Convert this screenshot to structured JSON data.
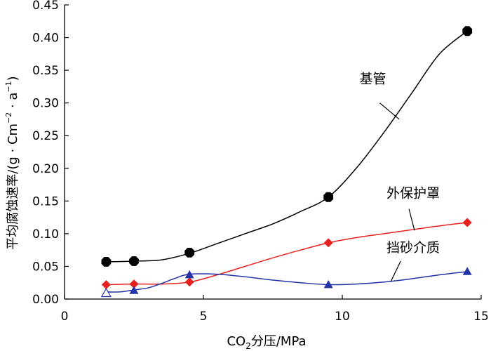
{
  "chart_data": {
    "type": "line",
    "xlabel": {
      "base": "CO",
      "sub": "2",
      "rest": "分压/MPa"
    },
    "ylabel": {
      "main": "平均腐蚀速率/(g · Cm",
      "sup1": "−2",
      "mid": " · a",
      "sup2": "−1",
      "end": ")"
    },
    "xlim": [
      0,
      15
    ],
    "ylim": [
      0,
      0.45
    ],
    "xticks": [
      0,
      5,
      10,
      15
    ],
    "xtick_labels": [
      "0",
      "5",
      "10",
      "15"
    ],
    "yticks": [
      0,
      0.05,
      0.1,
      0.15,
      0.2,
      0.25,
      0.3,
      0.35,
      0.4,
      0.45
    ],
    "ytick_labels": [
      "0.00",
      "0.05",
      "0.10",
      "0.15",
      "0.20",
      "0.25",
      "0.30",
      "0.35",
      "0.40",
      "0.45"
    ],
    "series": [
      {
        "name": "基管",
        "color": "#000000",
        "marker": "octagon",
        "points": [
          [
            1.5,
            0.057
          ],
          [
            2.5,
            0.058
          ],
          [
            4.5,
            0.071
          ],
          [
            9.5,
            0.156
          ],
          [
            14.5,
            0.41
          ]
        ],
        "curve": [
          [
            1.5,
            0.057
          ],
          [
            2.5,
            0.058
          ],
          [
            3.5,
            0.06
          ],
          [
            4.5,
            0.07
          ],
          [
            5.5,
            0.085
          ],
          [
            6.5,
            0.1
          ],
          [
            7.5,
            0.115
          ],
          [
            8.5,
            0.134
          ],
          [
            9.5,
            0.156
          ],
          [
            10.5,
            0.2
          ],
          [
            11.5,
            0.255
          ],
          [
            12.5,
            0.315
          ],
          [
            13.5,
            0.375
          ],
          [
            14.5,
            0.41
          ]
        ]
      },
      {
        "name": "外保护罩",
        "color": "#e8201e",
        "marker": "diamond",
        "points": [
          [
            1.5,
            0.022
          ],
          [
            2.5,
            0.023
          ],
          [
            4.5,
            0.026
          ],
          [
            9.5,
            0.086
          ],
          [
            14.5,
            0.117
          ]
        ],
        "curve": [
          [
            1.5,
            0.022
          ],
          [
            2.5,
            0.023
          ],
          [
            3.5,
            0.023
          ],
          [
            4.5,
            0.026
          ],
          [
            5.5,
            0.037
          ],
          [
            6.5,
            0.05
          ],
          [
            7.5,
            0.063
          ],
          [
            8.5,
            0.075
          ],
          [
            9.5,
            0.086
          ],
          [
            10.5,
            0.094
          ],
          [
            11.5,
            0.1
          ],
          [
            12.5,
            0.106
          ],
          [
            13.5,
            0.112
          ],
          [
            14.5,
            0.117
          ]
        ]
      },
      {
        "name": "挡砂介质",
        "color": "#2233a8",
        "marker": "triangle",
        "points": [
          [
            1.5,
            0.009
          ],
          [
            2.5,
            0.013
          ],
          [
            4.5,
            0.037
          ],
          [
            9.5,
            0.022
          ],
          [
            14.5,
            0.042
          ]
        ],
        "curve": [
          [
            1.5,
            0.011
          ],
          [
            2.0,
            0.011
          ],
          [
            2.5,
            0.014
          ],
          [
            3.0,
            0.017
          ],
          [
            3.5,
            0.024
          ],
          [
            4.0,
            0.032
          ],
          [
            4.5,
            0.038
          ],
          [
            5.5,
            0.038
          ],
          [
            6.5,
            0.034
          ],
          [
            7.5,
            0.029
          ],
          [
            8.5,
            0.025
          ],
          [
            9.5,
            0.022
          ],
          [
            10.5,
            0.023
          ],
          [
            11.5,
            0.026
          ],
          [
            12.5,
            0.031
          ],
          [
            13.5,
            0.037
          ],
          [
            14.5,
            0.042
          ]
        ]
      }
    ],
    "annotations": [
      {
        "text": "基管",
        "series": 0,
        "text_at": [
          11.1,
          0.33
        ],
        "arrow_from": [
          11.35,
          0.3
        ],
        "arrow_to": [
          12.05,
          0.275
        ]
      },
      {
        "text": "外保护罩",
        "series": 1,
        "text_at": [
          12.55,
          0.155
        ],
        "arrow_from": [
          12.4,
          0.138
        ],
        "arrow_to": [
          12.6,
          0.105
        ]
      },
      {
        "text": "挡砂介质",
        "series": 2,
        "text_at": [
          12.55,
          0.072
        ],
        "arrow_from": [
          12.1,
          0.058
        ],
        "arrow_to": [
          11.75,
          0.027
        ]
      }
    ]
  }
}
